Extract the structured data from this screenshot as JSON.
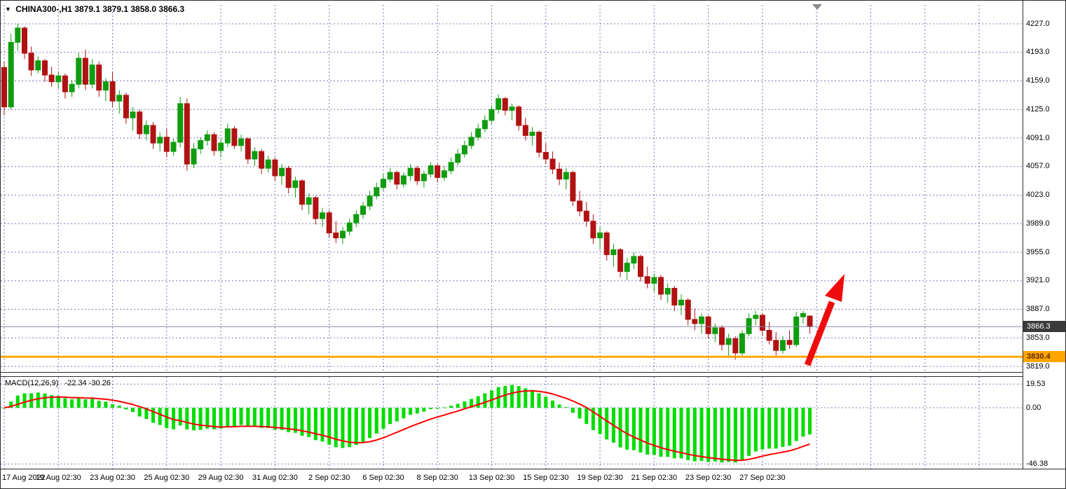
{
  "window": {
    "collapse_icon": "▼",
    "symbol_title": "CHINA300-,H1",
    "ohlc_text": "3879.1 3879.1 3858.0 3866.3"
  },
  "chart_data": {
    "type": "candlestick",
    "symbol": "CHINA300",
    "timeframe": "H1",
    "title": "CHINA300-,H1  3879.1 3879.1 3858.0 3866.3",
    "last_quote": {
      "open": 3879.1,
      "high": 3879.1,
      "low": 3858.0,
      "close": 3866.3
    },
    "ylim": [
      3819.0,
      4227.0
    ],
    "grid": true,
    "price_axis_ticks": [
      4227.0,
      4193.0,
      4159.0,
      4125.0,
      4091.0,
      4057.0,
      4023.0,
      3989.0,
      3955.0,
      3921.0,
      3887.0,
      3853.0,
      3819.0
    ],
    "time_axis_labels": [
      "17 Aug 2022",
      "19 Aug 02:30",
      "23 Aug 02:30",
      "25 Aug 02:30",
      "29 Aug 02:30",
      "31 Aug 02:30",
      "2 Sep 02:30",
      "6 Sep 02:30",
      "8 Sep 02:30",
      "13 Sep 02:30",
      "15 Sep 02:30",
      "19 Sep 02:30",
      "21 Sep 02:30",
      "23 Sep 02:30",
      "27 Sep 02:30"
    ],
    "bid_line": {
      "price": 3866.3,
      "label": "3866.3"
    },
    "support_line": {
      "price": 3830.4,
      "label": "3830.4",
      "color": "#FFA500"
    },
    "annotation": {
      "type": "arrow-up",
      "color": "#F00C0C"
    },
    "colors": {
      "up": "#0F9D0F",
      "down": "#B01212",
      "grid": "#7878B4",
      "bid_line": "#8888AA",
      "support": "#FFA500",
      "histogram": "#00DC00",
      "signal": "#FF0000",
      "arrow": "#F00C0C",
      "bid_tag_bg": "#3A3A3A"
    },
    "indicator": {
      "name": "MACD",
      "params": "12,26,9",
      "label": "MACD(12,26,9)",
      "values_text": "-22.34 -30.26",
      "main_value": -22.34,
      "signal_value": -30.26,
      "axis_ticks": [
        19.53,
        0.0,
        -46.38
      ],
      "ylim": [
        -46.38,
        19.53
      ]
    },
    "candles_ohlc": [
      [
        4175,
        4182,
        4118,
        4128
      ],
      [
        4128,
        4215,
        4125,
        4205
      ],
      [
        4205,
        4227,
        4195,
        4222
      ],
      [
        4222,
        4224,
        4185,
        4192
      ],
      [
        4192,
        4200,
        4165,
        4172
      ],
      [
        4172,
        4188,
        4168,
        4183
      ],
      [
        4183,
        4185,
        4158,
        4166
      ],
      [
        4166,
        4176,
        4152,
        4158
      ],
      [
        4158,
        4170,
        4150,
        4165
      ],
      [
        4165,
        4168,
        4138,
        4146
      ],
      [
        4146,
        4160,
        4140,
        4155
      ],
      [
        4155,
        4192,
        4150,
        4186
      ],
      [
        4186,
        4196,
        4148,
        4155
      ],
      [
        4155,
        4185,
        4150,
        4178
      ],
      [
        4178,
        4182,
        4140,
        4148
      ],
      [
        4148,
        4162,
        4135,
        4158
      ],
      [
        4158,
        4170,
        4128,
        4135
      ],
      [
        4135,
        4148,
        4120,
        4142
      ],
      [
        4142,
        4145,
        4108,
        4115
      ],
      [
        4115,
        4128,
        4100,
        4122
      ],
      [
        4122,
        4125,
        4090,
        4096
      ],
      [
        4096,
        4112,
        4088,
        4106
      ],
      [
        4106,
        4110,
        4078,
        4085
      ],
      [
        4085,
        4098,
        4075,
        4092
      ],
      [
        4092,
        4102,
        4068,
        4075
      ],
      [
        4075,
        4090,
        4070,
        4086
      ],
      [
        4086,
        4140,
        4080,
        4132
      ],
      [
        4132,
        4138,
        4052,
        4060
      ],
      [
        4060,
        4085,
        4055,
        4078
      ],
      [
        4078,
        4092,
        4072,
        4088
      ],
      [
        4088,
        4100,
        4082,
        4095
      ],
      [
        4095,
        4098,
        4070,
        4076
      ],
      [
        4076,
        4090,
        4068,
        4085
      ],
      [
        4085,
        4108,
        4080,
        4102
      ],
      [
        4102,
        4105,
        4078,
        4082
      ],
      [
        4082,
        4095,
        4075,
        4090
      ],
      [
        4090,
        4092,
        4060,
        4066
      ],
      [
        4066,
        4080,
        4058,
        4075
      ],
      [
        4075,
        4078,
        4048,
        4055
      ],
      [
        4055,
        4070,
        4050,
        4065
      ],
      [
        4065,
        4068,
        4040,
        4046
      ],
      [
        4046,
        4060,
        4035,
        4055
      ],
      [
        4055,
        4058,
        4025,
        4032
      ],
      [
        4032,
        4045,
        4020,
        4040
      ],
      [
        4040,
        4042,
        4005,
        4012
      ],
      [
        4012,
        4025,
        4000,
        4020
      ],
      [
        4020,
        4022,
        3988,
        3995
      ],
      [
        3995,
        4008,
        3985,
        4002
      ],
      [
        4002,
        4005,
        3972,
        3978
      ],
      [
        3978,
        3992,
        3966,
        3972
      ],
      [
        3972,
        3985,
        3965,
        3980
      ],
      [
        3980,
        3995,
        3975,
        3990
      ],
      [
        3990,
        4005,
        3985,
        4000
      ],
      [
        4000,
        4015,
        3995,
        4010
      ],
      [
        4010,
        4028,
        4005,
        4022
      ],
      [
        4022,
        4038,
        4018,
        4032
      ],
      [
        4032,
        4048,
        4028,
        4042
      ],
      [
        4042,
        4055,
        4038,
        4050
      ],
      [
        4050,
        4052,
        4030,
        4036
      ],
      [
        4036,
        4050,
        4032,
        4046
      ],
      [
        4046,
        4060,
        4040,
        4055
      ],
      [
        4055,
        4058,
        4035,
        4040
      ],
      [
        4040,
        4052,
        4032,
        4048
      ],
      [
        4048,
        4062,
        4044,
        4058
      ],
      [
        4058,
        4060,
        4038,
        4044
      ],
      [
        4044,
        4058,
        4040,
        4052
      ],
      [
        4052,
        4068,
        4048,
        4062
      ],
      [
        4062,
        4078,
        4058,
        4072
      ],
      [
        4072,
        4088,
        4068,
        4082
      ],
      [
        4082,
        4098,
        4078,
        4092
      ],
      [
        4092,
        4108,
        4088,
        4102
      ],
      [
        4102,
        4118,
        4098,
        4112
      ],
      [
        4112,
        4130,
        4108,
        4125
      ],
      [
        4125,
        4143,
        4120,
        4138
      ],
      [
        4138,
        4140,
        4118,
        4124
      ],
      [
        4124,
        4132,
        4112,
        4128
      ],
      [
        4128,
        4130,
        4100,
        4106
      ],
      [
        4106,
        4115,
        4088,
        4094
      ],
      [
        4094,
        4104,
        4082,
        4098
      ],
      [
        4098,
        4100,
        4068,
        4074
      ],
      [
        4074,
        4085,
        4060,
        4066
      ],
      [
        4066,
        4075,
        4048,
        4054
      ],
      [
        4054,
        4062,
        4035,
        4042
      ],
      [
        4042,
        4055,
        4030,
        4050
      ],
      [
        4050,
        4052,
        4010,
        4016
      ],
      [
        4016,
        4028,
        3998,
        4004
      ],
      [
        4004,
        4015,
        3985,
        3992
      ],
      [
        3992,
        4000,
        3965,
        3972
      ],
      [
        3972,
        3985,
        3958,
        3978
      ],
      [
        3978,
        3980,
        3945,
        3952
      ],
      [
        3952,
        3965,
        3938,
        3958
      ],
      [
        3958,
        3960,
        3925,
        3932
      ],
      [
        3932,
        3948,
        3922,
        3942
      ],
      [
        3942,
        3955,
        3935,
        3950
      ],
      [
        3950,
        3952,
        3920,
        3926
      ],
      [
        3926,
        3938,
        3912,
        3918
      ],
      [
        3918,
        3930,
        3908,
        3925
      ],
      [
        3925,
        3928,
        3898,
        3905
      ],
      [
        3905,
        3918,
        3895,
        3912
      ],
      [
        3912,
        3915,
        3885,
        3892
      ],
      [
        3892,
        3905,
        3880,
        3898
      ],
      [
        3898,
        3900,
        3868,
        3875
      ],
      [
        3875,
        3888,
        3862,
        3870
      ],
      [
        3870,
        3882,
        3858,
        3878
      ],
      [
        3878,
        3880,
        3852,
        3858
      ],
      [
        3858,
        3870,
        3848,
        3865
      ],
      [
        3865,
        3868,
        3838,
        3845
      ],
      [
        3845,
        3858,
        3830,
        3852
      ],
      [
        3852,
        3855,
        3827,
        3835
      ],
      [
        3835,
        3862,
        3832,
        3858
      ],
      [
        3858,
        3882,
        3855,
        3876
      ],
      [
        3876,
        3885,
        3868,
        3880
      ],
      [
        3880,
        3882,
        3855,
        3862
      ],
      [
        3862,
        3872,
        3845,
        3850
      ],
      [
        3850,
        3860,
        3832,
        3838
      ],
      [
        3838,
        3855,
        3834,
        3850
      ],
      [
        3850,
        3862,
        3840,
        3845
      ],
      [
        3845,
        3884,
        3842,
        3878
      ],
      [
        3878,
        3885,
        3870,
        3882
      ],
      [
        3879.1,
        3879.1,
        3858.0,
        3866.3
      ]
    ]
  }
}
